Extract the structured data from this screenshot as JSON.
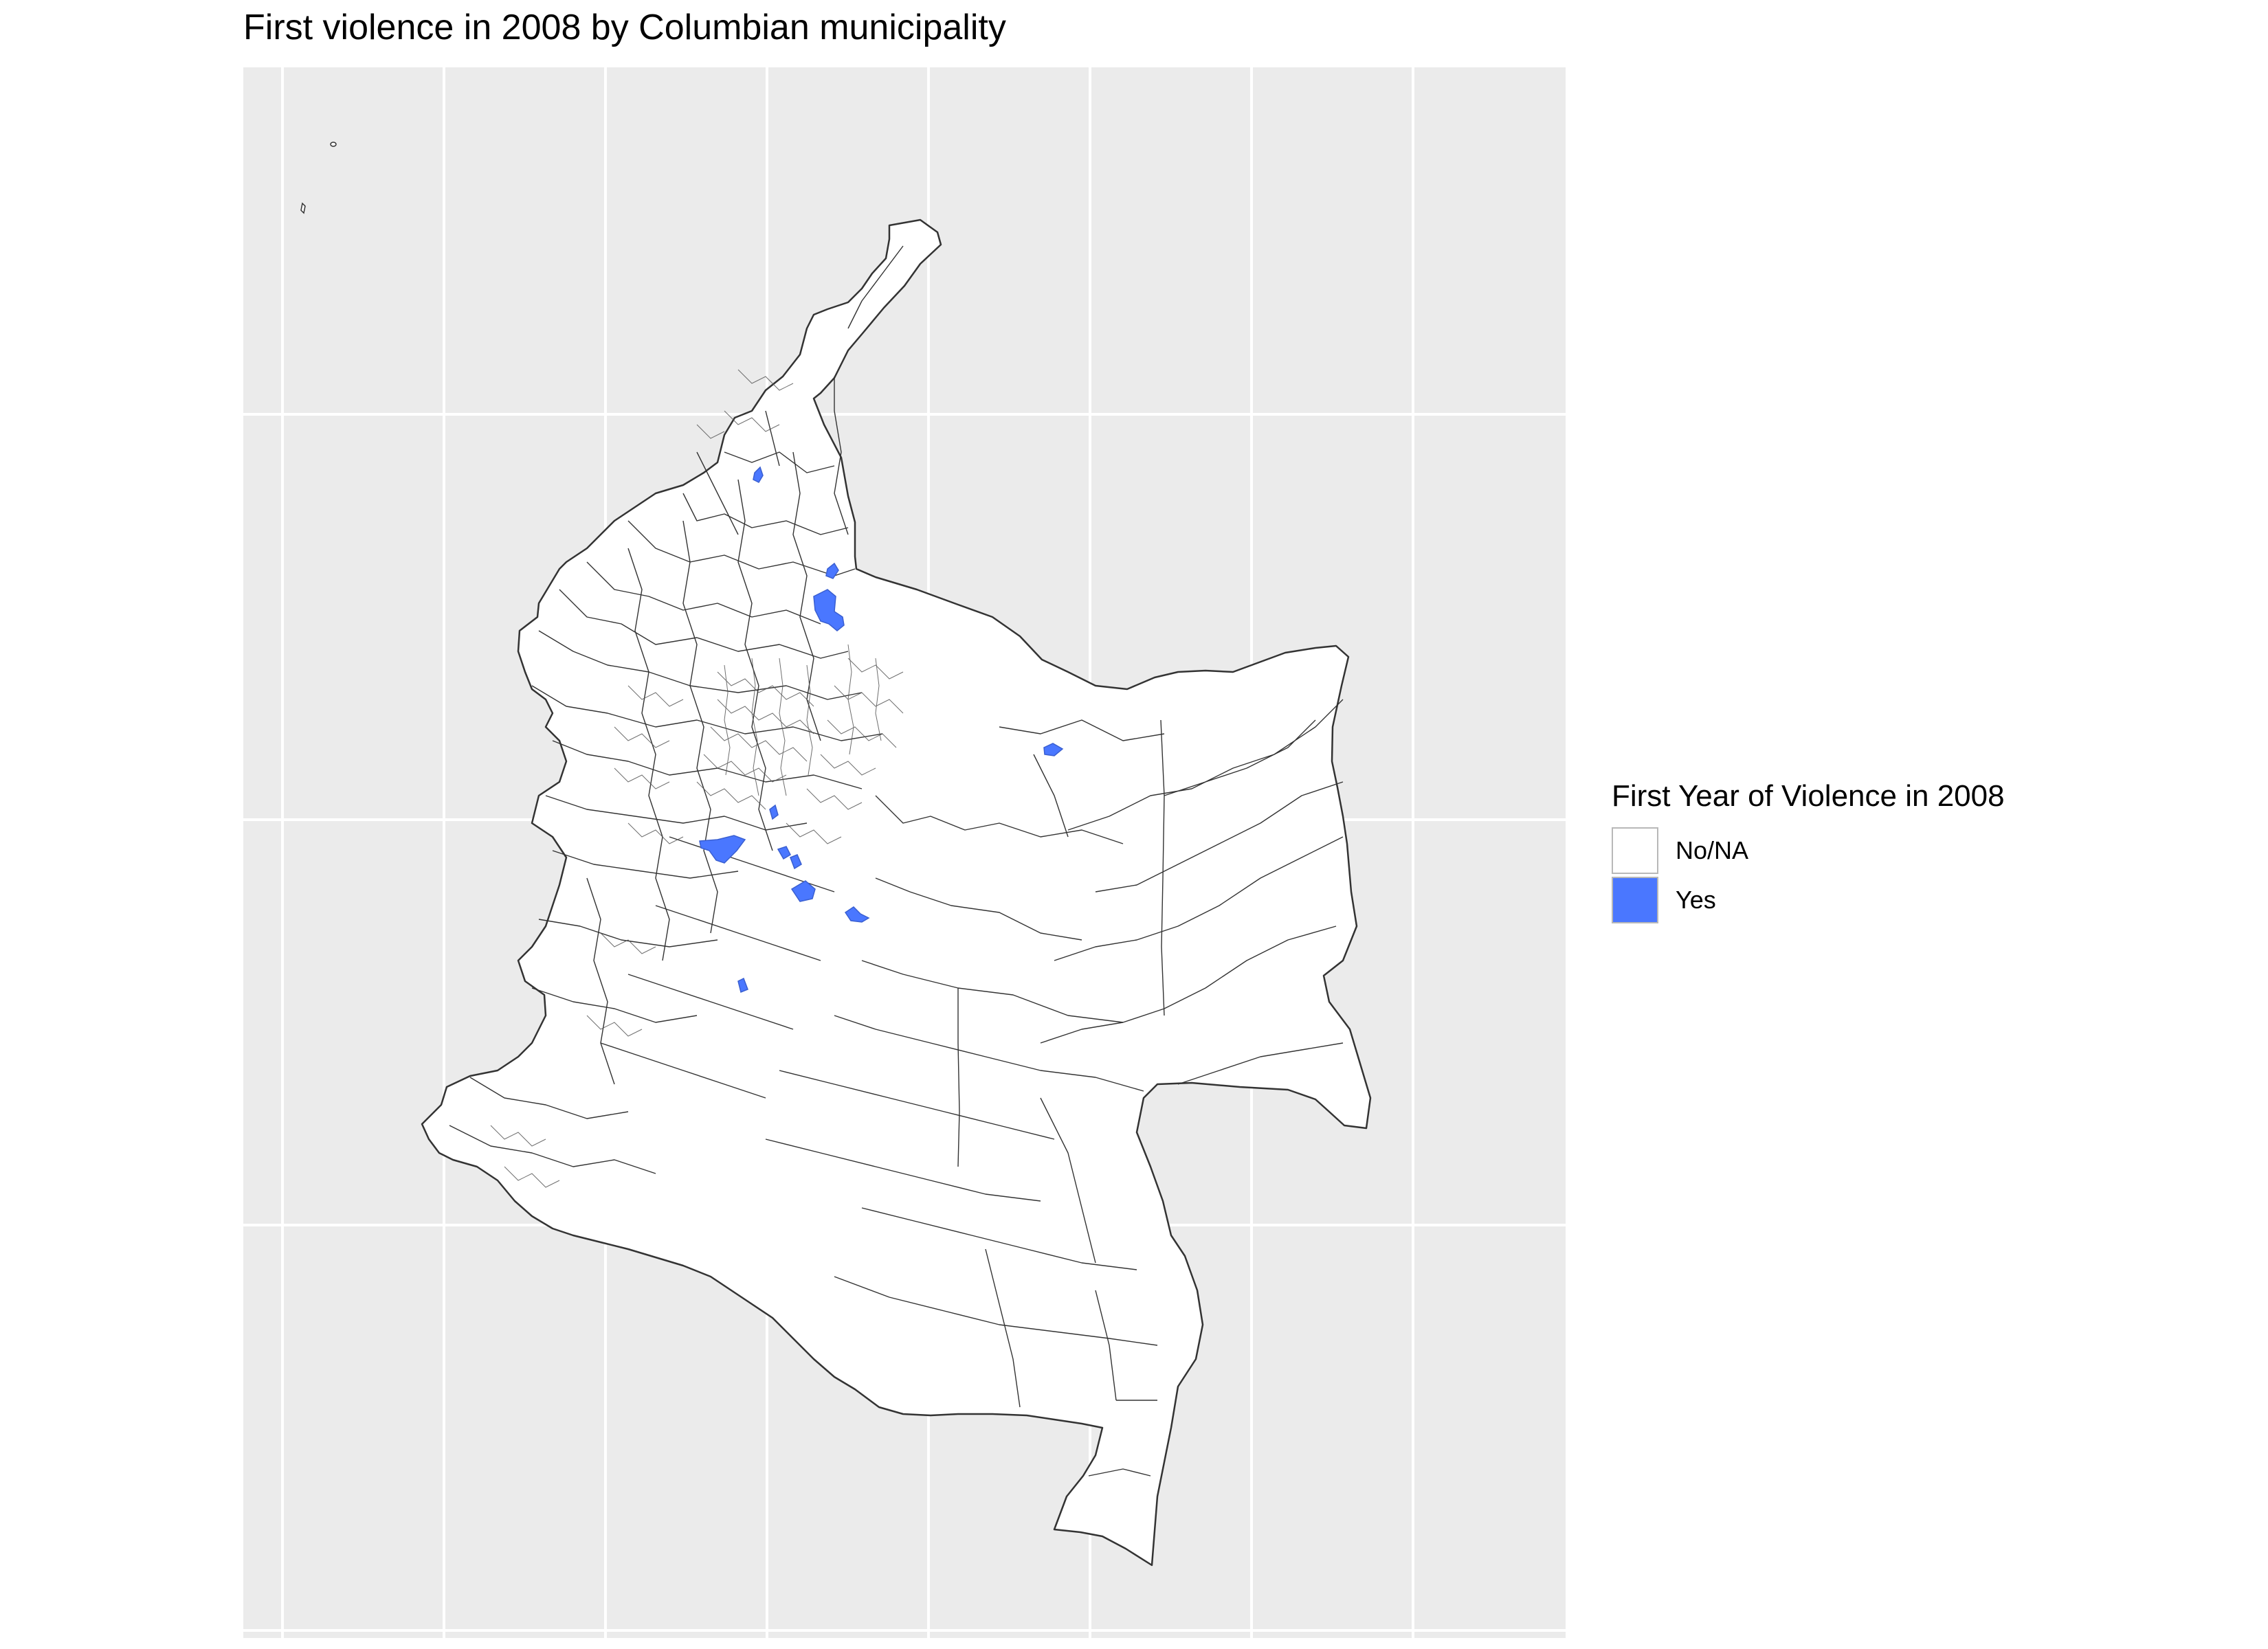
{
  "title": "First violence in 2008 by Columbian municipality",
  "legend": {
    "title": "First Year of Violence in 2008",
    "items": [
      {
        "label": "No/NA",
        "color": "#ffffff"
      },
      {
        "label": "Yes",
        "color": "#4a77ff"
      }
    ]
  },
  "colors": {
    "panel_background": "#ebebeb",
    "grid": "#ffffff",
    "municipality_fill": "#ffffff",
    "municipality_border": "#333333",
    "highlight": "#4a77ff"
  },
  "highlighted_municipality_count": 10
}
